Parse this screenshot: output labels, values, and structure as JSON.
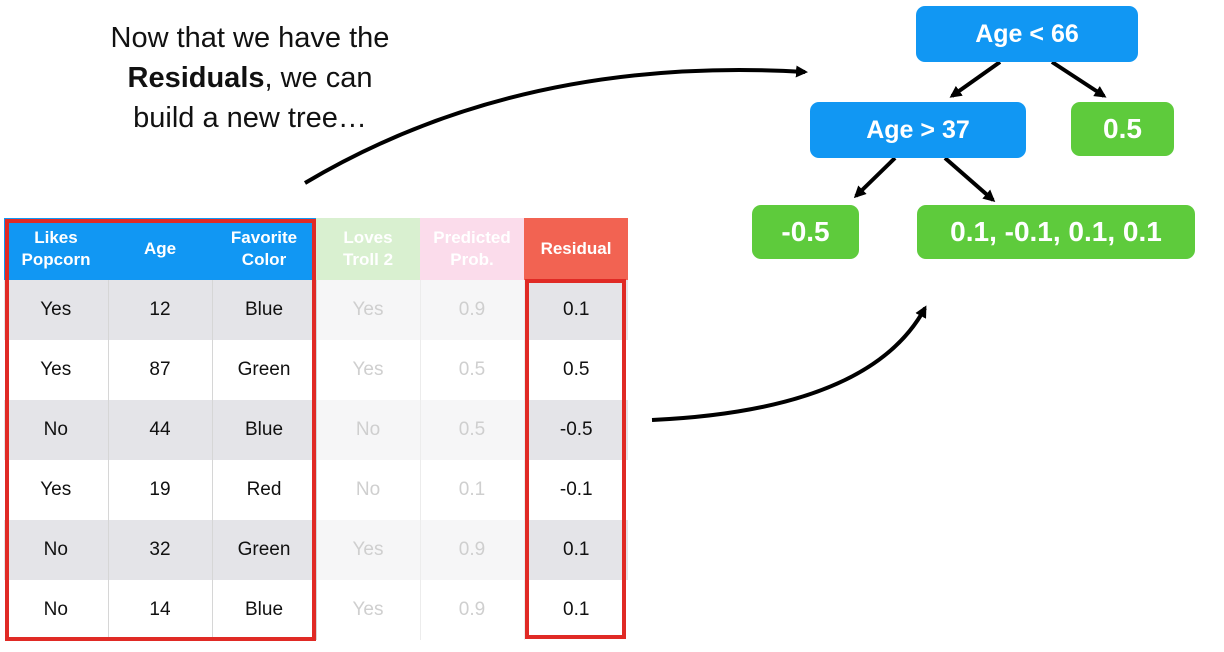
{
  "caption": {
    "line1": "Now that we have the",
    "line2_bold": "Residuals",
    "line2_rest": ", we can",
    "line3": "build a new tree…"
  },
  "tree": {
    "root": "Age < 66",
    "left_split": "Age > 37",
    "right_leaf": "0.5",
    "left_left_leaf": "-0.5",
    "left_right_leaf": "0.1, -0.1, 0.1, 0.1"
  },
  "table": {
    "headers": [
      {
        "line1": "Likes",
        "line2": "Popcorn"
      },
      {
        "line1": "Age",
        "line2": ""
      },
      {
        "line1": "Favorite",
        "line2": "Color"
      },
      {
        "line1": "Loves",
        "line2": "Troll 2"
      },
      {
        "line1": "Predicted",
        "line2": "Prob."
      },
      {
        "line1": "Residual",
        "line2": ""
      }
    ],
    "rows": [
      [
        "Yes",
        "12",
        "Blue",
        "Yes",
        "0.9",
        "0.1"
      ],
      [
        "Yes",
        "87",
        "Green",
        "Yes",
        "0.5",
        "0.5"
      ],
      [
        "No",
        "44",
        "Blue",
        "No",
        "0.5",
        "-0.5"
      ],
      [
        "Yes",
        "19",
        "Red",
        "No",
        "0.1",
        "-0.1"
      ],
      [
        "No",
        "32",
        "Green",
        "Yes",
        "0.9",
        "0.1"
      ],
      [
        "No",
        "14",
        "Blue",
        "Yes",
        "0.9",
        "0.1"
      ]
    ]
  },
  "colors": {
    "node_blue": "#1197f3",
    "node_green": "#5ecb3c",
    "highlight_red": "#e02a25",
    "residual_header": "#f26352"
  }
}
